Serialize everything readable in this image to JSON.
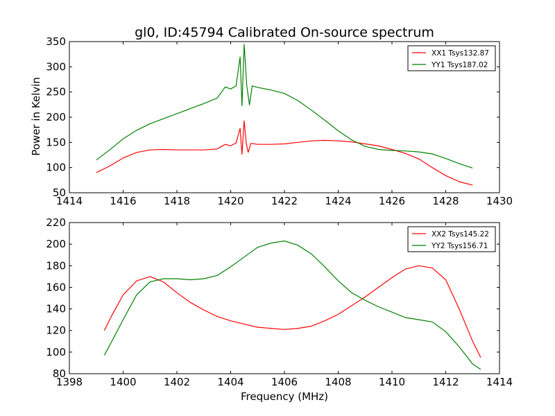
{
  "chart_data": [
    {
      "type": "line",
      "title": "gl0, ID:45794 Calibrated On-source spectrum",
      "xlabel": "",
      "ylabel": "Power in Kelvin",
      "xlim": [
        1414,
        1430
      ],
      "ylim": [
        50,
        350
      ],
      "xticks": [
        1414,
        1416,
        1418,
        1420,
        1422,
        1424,
        1426,
        1428,
        1430
      ],
      "yticks": [
        50,
        100,
        150,
        200,
        250,
        300,
        350
      ],
      "legend_position": "top-right",
      "grid": false,
      "series": [
        {
          "name": "XX1 Tsys132.87",
          "color": "#ff0000",
          "points": [
            [
              1415.0,
              90
            ],
            [
              1415.5,
              103
            ],
            [
              1416.0,
              119
            ],
            [
              1416.5,
              130
            ],
            [
              1417.0,
              135
            ],
            [
              1417.5,
              136
            ],
            [
              1418.0,
              135
            ],
            [
              1418.5,
              135
            ],
            [
              1419.0,
              135
            ],
            [
              1419.5,
              137
            ],
            [
              1419.8,
              146
            ],
            [
              1420.0,
              143
            ],
            [
              1420.2,
              149
            ],
            [
              1420.35,
              178
            ],
            [
              1420.42,
              126
            ],
            [
              1420.5,
              193
            ],
            [
              1420.58,
              148
            ],
            [
              1420.65,
              130
            ],
            [
              1420.75,
              148
            ],
            [
              1421.0,
              146
            ],
            [
              1421.5,
              146
            ],
            [
              1422.0,
              147
            ],
            [
              1422.5,
              150
            ],
            [
              1423.0,
              153
            ],
            [
              1423.5,
              154
            ],
            [
              1424.0,
              153
            ],
            [
              1424.5,
              151
            ],
            [
              1425.0,
              147
            ],
            [
              1425.5,
              143
            ],
            [
              1426.0,
              136
            ],
            [
              1426.5,
              128
            ],
            [
              1427.0,
              117
            ],
            [
              1427.5,
              100
            ],
            [
              1428.0,
              84
            ],
            [
              1428.5,
              72
            ],
            [
              1429.0,
              65
            ]
          ]
        },
        {
          "name": "YY1 Tsys187.02",
          "color": "#008000",
          "points": [
            [
              1415.0,
              115
            ],
            [
              1415.5,
              135
            ],
            [
              1416.0,
              157
            ],
            [
              1416.5,
              174
            ],
            [
              1417.0,
              187
            ],
            [
              1417.5,
              197
            ],
            [
              1418.0,
              207
            ],
            [
              1418.5,
              217
            ],
            [
              1419.0,
              227
            ],
            [
              1419.5,
              238
            ],
            [
              1419.8,
              260
            ],
            [
              1420.0,
              256
            ],
            [
              1420.2,
              262
            ],
            [
              1420.35,
              320
            ],
            [
              1420.42,
              222
            ],
            [
              1420.5,
              345
            ],
            [
              1420.6,
              263
            ],
            [
              1420.7,
              224
            ],
            [
              1420.8,
              262
            ],
            [
              1421.0,
              259
            ],
            [
              1421.5,
              254
            ],
            [
              1422.0,
              247
            ],
            [
              1422.5,
              233
            ],
            [
              1423.0,
              214
            ],
            [
              1423.5,
              194
            ],
            [
              1424.0,
              173
            ],
            [
              1424.5,
              155
            ],
            [
              1425.0,
              142
            ],
            [
              1425.5,
              136
            ],
            [
              1426.0,
              134
            ],
            [
              1426.5,
              133
            ],
            [
              1427.0,
              131
            ],
            [
              1427.5,
              127
            ],
            [
              1428.0,
              118
            ],
            [
              1428.5,
              108
            ],
            [
              1429.0,
              99
            ]
          ]
        }
      ]
    },
    {
      "type": "line",
      "title": "",
      "xlabel": "Frequency (MHz)",
      "ylabel": "",
      "xlim": [
        1398,
        1414
      ],
      "ylim": [
        80,
        220
      ],
      "xticks": [
        1398,
        1400,
        1402,
        1404,
        1406,
        1408,
        1410,
        1412,
        1414
      ],
      "yticks": [
        80,
        100,
        120,
        140,
        160,
        180,
        200,
        220
      ],
      "legend_position": "top-right",
      "grid": false,
      "series": [
        {
          "name": "XX2 Tsys145.22",
          "color": "#ff0000",
          "points": [
            [
              1399.3,
              120
            ],
            [
              1399.6,
              135
            ],
            [
              1400.0,
              153
            ],
            [
              1400.5,
              166
            ],
            [
              1401.0,
              170
            ],
            [
              1401.5,
              165
            ],
            [
              1402.0,
              155
            ],
            [
              1402.5,
              146
            ],
            [
              1403.0,
              139
            ],
            [
              1403.5,
              133
            ],
            [
              1404.0,
              129
            ],
            [
              1404.5,
              126
            ],
            [
              1405.0,
              123
            ],
            [
              1405.5,
              122
            ],
            [
              1406.0,
              121
            ],
            [
              1406.5,
              122
            ],
            [
              1407.0,
              124
            ],
            [
              1407.5,
              129
            ],
            [
              1408.0,
              135
            ],
            [
              1408.5,
              143
            ],
            [
              1409.0,
              151
            ],
            [
              1409.5,
              160
            ],
            [
              1410.0,
              169
            ],
            [
              1410.5,
              177
            ],
            [
              1411.0,
              180
            ],
            [
              1411.5,
              178
            ],
            [
              1412.0,
              167
            ],
            [
              1412.5,
              140
            ],
            [
              1413.0,
              110
            ],
            [
              1413.3,
              95
            ]
          ]
        },
        {
          "name": "YY2 Tsys156.71",
          "color": "#008000",
          "points": [
            [
              1399.3,
              97
            ],
            [
              1399.6,
              111
            ],
            [
              1400.0,
              130
            ],
            [
              1400.5,
              153
            ],
            [
              1401.0,
              165
            ],
            [
              1401.5,
              168
            ],
            [
              1402.0,
              168
            ],
            [
              1402.5,
              167
            ],
            [
              1403.0,
              168
            ],
            [
              1403.5,
              171
            ],
            [
              1404.0,
              179
            ],
            [
              1404.5,
              188
            ],
            [
              1405.0,
              197
            ],
            [
              1405.5,
              201
            ],
            [
              1406.0,
              203
            ],
            [
              1406.5,
              199
            ],
            [
              1407.0,
              191
            ],
            [
              1407.5,
              179
            ],
            [
              1408.0,
              166
            ],
            [
              1408.5,
              155
            ],
            [
              1409.0,
              148
            ],
            [
              1409.5,
              142
            ],
            [
              1410.0,
              137
            ],
            [
              1410.5,
              132
            ],
            [
              1411.0,
              130
            ],
            [
              1411.5,
              128
            ],
            [
              1412.0,
              119
            ],
            [
              1412.5,
              105
            ],
            [
              1413.0,
              89
            ],
            [
              1413.3,
              84
            ]
          ]
        }
      ]
    }
  ]
}
